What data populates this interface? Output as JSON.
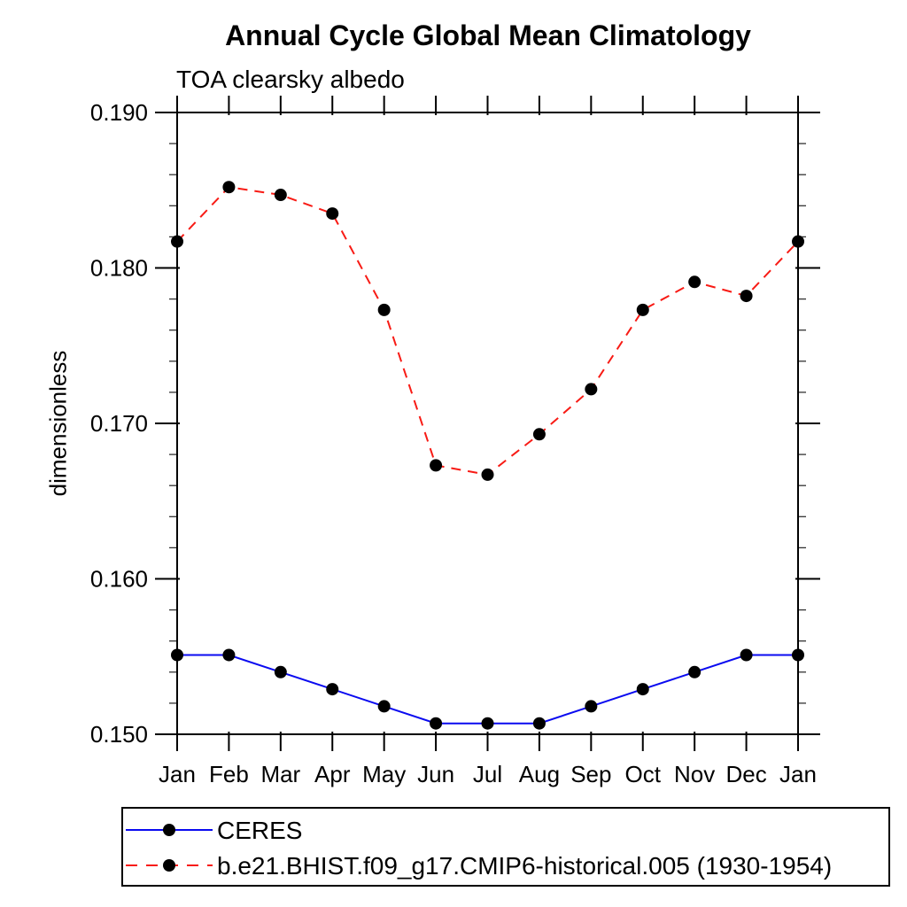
{
  "title": "Annual Cycle Global Mean Climatology",
  "subtitle": "TOA clearsky albedo",
  "ylabel": "dimensionless",
  "chart_data": {
    "type": "line",
    "title": "Annual Cycle Global Mean Climatology",
    "subtitle": "TOA clearsky albedo",
    "xlabel": "",
    "ylabel": "dimensionless",
    "categories": [
      "Jan",
      "Feb",
      "Mar",
      "Apr",
      "May",
      "Jun",
      "Jul",
      "Aug",
      "Sep",
      "Oct",
      "Nov",
      "Dec",
      "Jan"
    ],
    "ylim": [
      0.15,
      0.19
    ],
    "ytick_values": [
      0.15,
      0.16,
      0.17,
      0.18,
      0.19
    ],
    "ytick_labels": [
      "0.150",
      "0.160",
      "0.170",
      "0.180",
      "0.190"
    ],
    "y_minor_tick_step": 0.002,
    "grid": false,
    "frame": "box-with-outward-ticks",
    "legend_position": "bottom-left-box",
    "marker_color": "#000000",
    "series": [
      {
        "name": "CERES",
        "color": "#0a0af0",
        "line_style": "solid",
        "marker": "filled-circle",
        "values": [
          0.1551,
          0.1551,
          0.154,
          0.1529,
          0.1518,
          0.1507,
          0.1507,
          0.1507,
          0.1518,
          0.1529,
          0.154,
          0.1551,
          0.1551
        ]
      },
      {
        "name": "b.e21.BHIST.f09_g17.CMIP6-historical.005 (1930-1954)",
        "color": "#f81b15",
        "line_style": "dashed",
        "marker": "filled-circle",
        "values": [
          0.1817,
          0.1852,
          0.1847,
          0.1835,
          0.1773,
          0.1673,
          0.1667,
          0.1693,
          0.1722,
          0.1773,
          0.1791,
          0.1782,
          0.1817
        ]
      }
    ]
  }
}
